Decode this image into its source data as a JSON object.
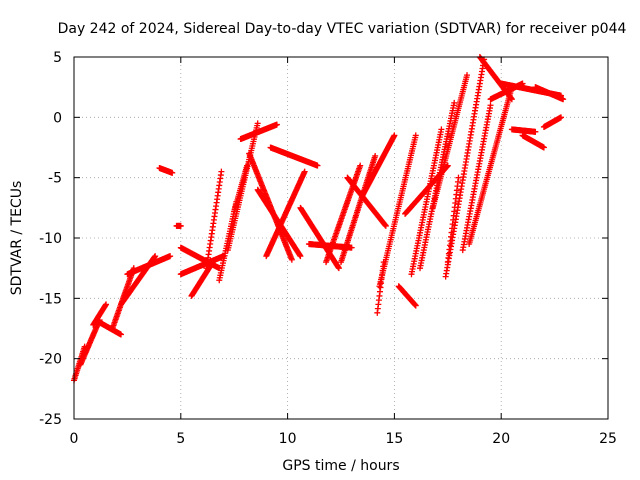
{
  "chart_data": {
    "type": "scatter",
    "title": "Day 242 of 2024, Sidereal Day-to-day VTEC variation (SDTVAR) for receiver p044",
    "xlabel": "GPS time / hours",
    "ylabel": "SDTVAR / TECUs",
    "xlim": [
      0,
      25
    ],
    "ylim": [
      -25,
      5
    ],
    "xticks": [
      0,
      5,
      10,
      15,
      20,
      25
    ],
    "yticks": [
      -25,
      -20,
      -15,
      -10,
      -5,
      0,
      5
    ],
    "grid": true,
    "marker": "plus",
    "color": "#ff0000",
    "series": [
      {
        "arcs": [
          {
            "x0": 0.0,
            "x1": 0.5,
            "y0": -21.8,
            "y1": -19.0
          },
          {
            "x0": 0.3,
            "x1": 1.2,
            "y0": -20.5,
            "y1": -16.8
          },
          {
            "x0": 0.9,
            "x1": 1.5,
            "y0": -17.2,
            "y1": -15.5
          },
          {
            "x0": 1.2,
            "x1": 2.2,
            "y0": -17.0,
            "y1": -18.0
          },
          {
            "x0": 1.8,
            "x1": 2.8,
            "y0": -17.5,
            "y1": -12.5
          },
          {
            "x0": 2.2,
            "x1": 3.8,
            "y0": -15.5,
            "y1": -11.5
          },
          {
            "x0": 2.5,
            "x1": 4.5,
            "y0": -13.0,
            "y1": -11.5
          },
          {
            "x0": 4.0,
            "x1": 4.6,
            "y0": -4.2,
            "y1": -4.6
          },
          {
            "x0": 4.8,
            "x1": 5.0,
            "y0": -9.0,
            "y1": -9.0
          },
          {
            "x0": 5.0,
            "x1": 6.8,
            "y0": -10.8,
            "y1": -12.5
          },
          {
            "x0": 5.0,
            "x1": 7.0,
            "y0": -13.0,
            "y1": -11.5
          },
          {
            "x0": 5.5,
            "x1": 6.5,
            "y0": -14.8,
            "y1": -12.0
          },
          {
            "x0": 6.2,
            "x1": 6.9,
            "y0": -12.5,
            "y1": -4.5
          },
          {
            "x0": 6.8,
            "x1": 7.6,
            "y0": -13.5,
            "y1": -7.0
          },
          {
            "x0": 7.2,
            "x1": 8.6,
            "y0": -11.0,
            "y1": -0.5
          },
          {
            "x0": 7.5,
            "x1": 8.1,
            "y0": -7.8,
            "y1": -4.0
          },
          {
            "x0": 7.8,
            "x1": 9.5,
            "y0": -1.8,
            "y1": -0.6
          },
          {
            "x0": 8.2,
            "x1": 10.2,
            "y0": -3.0,
            "y1": -11.8
          },
          {
            "x0": 8.6,
            "x1": 10.6,
            "y0": -6.0,
            "y1": -11.5
          },
          {
            "x0": 9.0,
            "x1": 10.8,
            "y0": -11.5,
            "y1": -4.5
          },
          {
            "x0": 9.2,
            "x1": 11.4,
            "y0": -2.5,
            "y1": -4.0
          },
          {
            "x0": 10.6,
            "x1": 12.4,
            "y0": -7.5,
            "y1": -12.5
          },
          {
            "x0": 11.0,
            "x1": 13.0,
            "y0": -10.5,
            "y1": -10.8
          },
          {
            "x0": 11.8,
            "x1": 13.4,
            "y0": -12.0,
            "y1": -4.0
          },
          {
            "x0": 12.5,
            "x1": 14.1,
            "y0": -12.0,
            "y1": -3.2
          },
          {
            "x0": 12.8,
            "x1": 14.6,
            "y0": -5.0,
            "y1": -9.0
          },
          {
            "x0": 13.5,
            "x1": 15.0,
            "y0": -6.5,
            "y1": -1.5
          },
          {
            "x0": 14.2,
            "x1": 14.5,
            "y0": -16.2,
            "y1": -12.0
          },
          {
            "x0": 14.3,
            "x1": 16.0,
            "y0": -14.0,
            "y1": -1.5
          },
          {
            "x0": 15.2,
            "x1": 16.0,
            "y0": -14.0,
            "y1": -15.6
          },
          {
            "x0": 15.5,
            "x1": 17.5,
            "y0": -8.0,
            "y1": -4.0
          },
          {
            "x0": 15.8,
            "x1": 17.2,
            "y0": -13.0,
            "y1": -1.0
          },
          {
            "x0": 16.2,
            "x1": 17.8,
            "y0": -12.5,
            "y1": 1.2
          },
          {
            "x0": 16.8,
            "x1": 18.4,
            "y0": -7.5,
            "y1": 3.5
          },
          {
            "x0": 17.4,
            "x1": 19.2,
            "y0": -13.2,
            "y1": 4.8
          },
          {
            "x0": 17.5,
            "x1": 18.0,
            "y0": -12.0,
            "y1": -5.0
          },
          {
            "x0": 18.2,
            "x1": 19.5,
            "y0": -11.0,
            "y1": 1.0
          },
          {
            "x0": 18.5,
            "x1": 20.5,
            "y0": -10.5,
            "y1": 2.5
          },
          {
            "x0": 19.0,
            "x1": 20.5,
            "y0": 5.0,
            "y1": 1.5
          },
          {
            "x0": 19.5,
            "x1": 21.0,
            "y0": 1.5,
            "y1": 2.8
          },
          {
            "x0": 20.0,
            "x1": 22.8,
            "y0": 2.8,
            "y1": 1.8
          },
          {
            "x0": 20.5,
            "x1": 21.6,
            "y0": -1.0,
            "y1": -1.2
          },
          {
            "x0": 21.0,
            "x1": 22.0,
            "y0": -1.5,
            "y1": -2.5
          },
          {
            "x0": 21.6,
            "x1": 22.9,
            "y0": 2.5,
            "y1": 1.5
          },
          {
            "x0": 22.0,
            "x1": 22.8,
            "y0": -0.8,
            "y1": 0.0
          }
        ]
      }
    ]
  }
}
